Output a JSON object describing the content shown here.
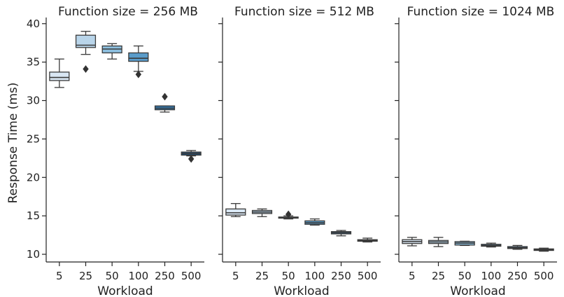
{
  "chart_data": {
    "type": "box",
    "ylabel": "Response Time (ms)",
    "ylim": [
      9,
      40.8
    ],
    "yticks": [
      10,
      15,
      20,
      25,
      30,
      35,
      40
    ],
    "categories": [
      "5",
      "25",
      "50",
      "100",
      "250",
      "500"
    ],
    "colors": [
      "#d9e7f4",
      "#b9d5ea",
      "#8dbfdf",
      "#5a9cca",
      "#3377ac",
      "#1f4f79"
    ],
    "outlier_color": "#333333",
    "legend": "none",
    "grid": false,
    "panels": [
      {
        "title": "Function size = 256 MB",
        "xlabel": "Workload",
        "boxes": [
          {
            "category": "5",
            "whislo": 31.7,
            "q1": 32.6,
            "med": 33.0,
            "q3": 33.7,
            "whishi": 35.4,
            "fliers": []
          },
          {
            "category": "25",
            "whislo": 36.0,
            "q1": 36.9,
            "med": 37.2,
            "q3": 38.5,
            "whishi": 39.0,
            "fliers": [
              34.1
            ]
          },
          {
            "category": "50",
            "whislo": 35.4,
            "q1": 36.2,
            "med": 36.7,
            "q3": 37.1,
            "whishi": 37.4,
            "fliers": []
          },
          {
            "category": "100",
            "whislo": 33.8,
            "q1": 35.1,
            "med": 35.5,
            "q3": 36.2,
            "whishi": 37.1,
            "fliers": [
              33.4
            ]
          },
          {
            "category": "250",
            "whislo": 28.5,
            "q1": 28.8,
            "med": 29.0,
            "q3": 29.3,
            "whishi": 29.3,
            "fliers": [
              30.5
            ]
          },
          {
            "category": "500",
            "whislo": 22.8,
            "q1": 22.9,
            "med": 23.1,
            "q3": 23.3,
            "whishi": 23.5,
            "fliers": [
              22.4
            ]
          }
        ]
      },
      {
        "title": "Function size = 512 MB",
        "xlabel": "Workload",
        "boxes": [
          {
            "category": "5",
            "whislo": 14.9,
            "q1": 15.1,
            "med": 15.4,
            "q3": 15.9,
            "whishi": 16.6,
            "fliers": []
          },
          {
            "category": "25",
            "whislo": 14.9,
            "q1": 15.3,
            "med": 15.5,
            "q3": 15.7,
            "whishi": 15.9,
            "fliers": []
          },
          {
            "category": "50",
            "whislo": 14.6,
            "q1": 14.7,
            "med": 14.75,
            "q3": 14.85,
            "whishi": 15.0,
            "fliers": [
              15.2
            ]
          },
          {
            "category": "100",
            "whislo": 13.8,
            "q1": 13.9,
            "med": 14.1,
            "q3": 14.35,
            "whishi": 14.6,
            "fliers": []
          },
          {
            "category": "250",
            "whislo": 12.4,
            "q1": 12.65,
            "med": 12.8,
            "q3": 12.95,
            "whishi": 13.1,
            "fliers": []
          },
          {
            "category": "500",
            "whislo": 11.6,
            "q1": 11.7,
            "med": 11.8,
            "q3": 11.9,
            "whishi": 12.1,
            "fliers": []
          }
        ]
      },
      {
        "title": "Function size = 1024 MB",
        "xlabel": "Workload",
        "boxes": [
          {
            "category": "5",
            "whislo": 11.1,
            "q1": 11.4,
            "med": 11.65,
            "q3": 11.9,
            "whishi": 12.2,
            "fliers": []
          },
          {
            "category": "25",
            "whislo": 11.0,
            "q1": 11.4,
            "med": 11.6,
            "q3": 11.8,
            "whishi": 12.2,
            "fliers": []
          },
          {
            "category": "50",
            "whislo": 11.15,
            "q1": 11.2,
            "med": 11.45,
            "q3": 11.65,
            "whishi": 11.7,
            "fliers": []
          },
          {
            "category": "100",
            "whislo": 10.95,
            "q1": 11.05,
            "med": 11.15,
            "q3": 11.3,
            "whishi": 11.45,
            "fliers": []
          },
          {
            "category": "250",
            "whislo": 10.65,
            "q1": 10.75,
            "med": 10.85,
            "q3": 11.0,
            "whishi": 11.15,
            "fliers": []
          },
          {
            "category": "500",
            "whislo": 10.4,
            "q1": 10.5,
            "med": 10.6,
            "q3": 10.7,
            "whishi": 10.8,
            "fliers": []
          }
        ]
      }
    ]
  }
}
